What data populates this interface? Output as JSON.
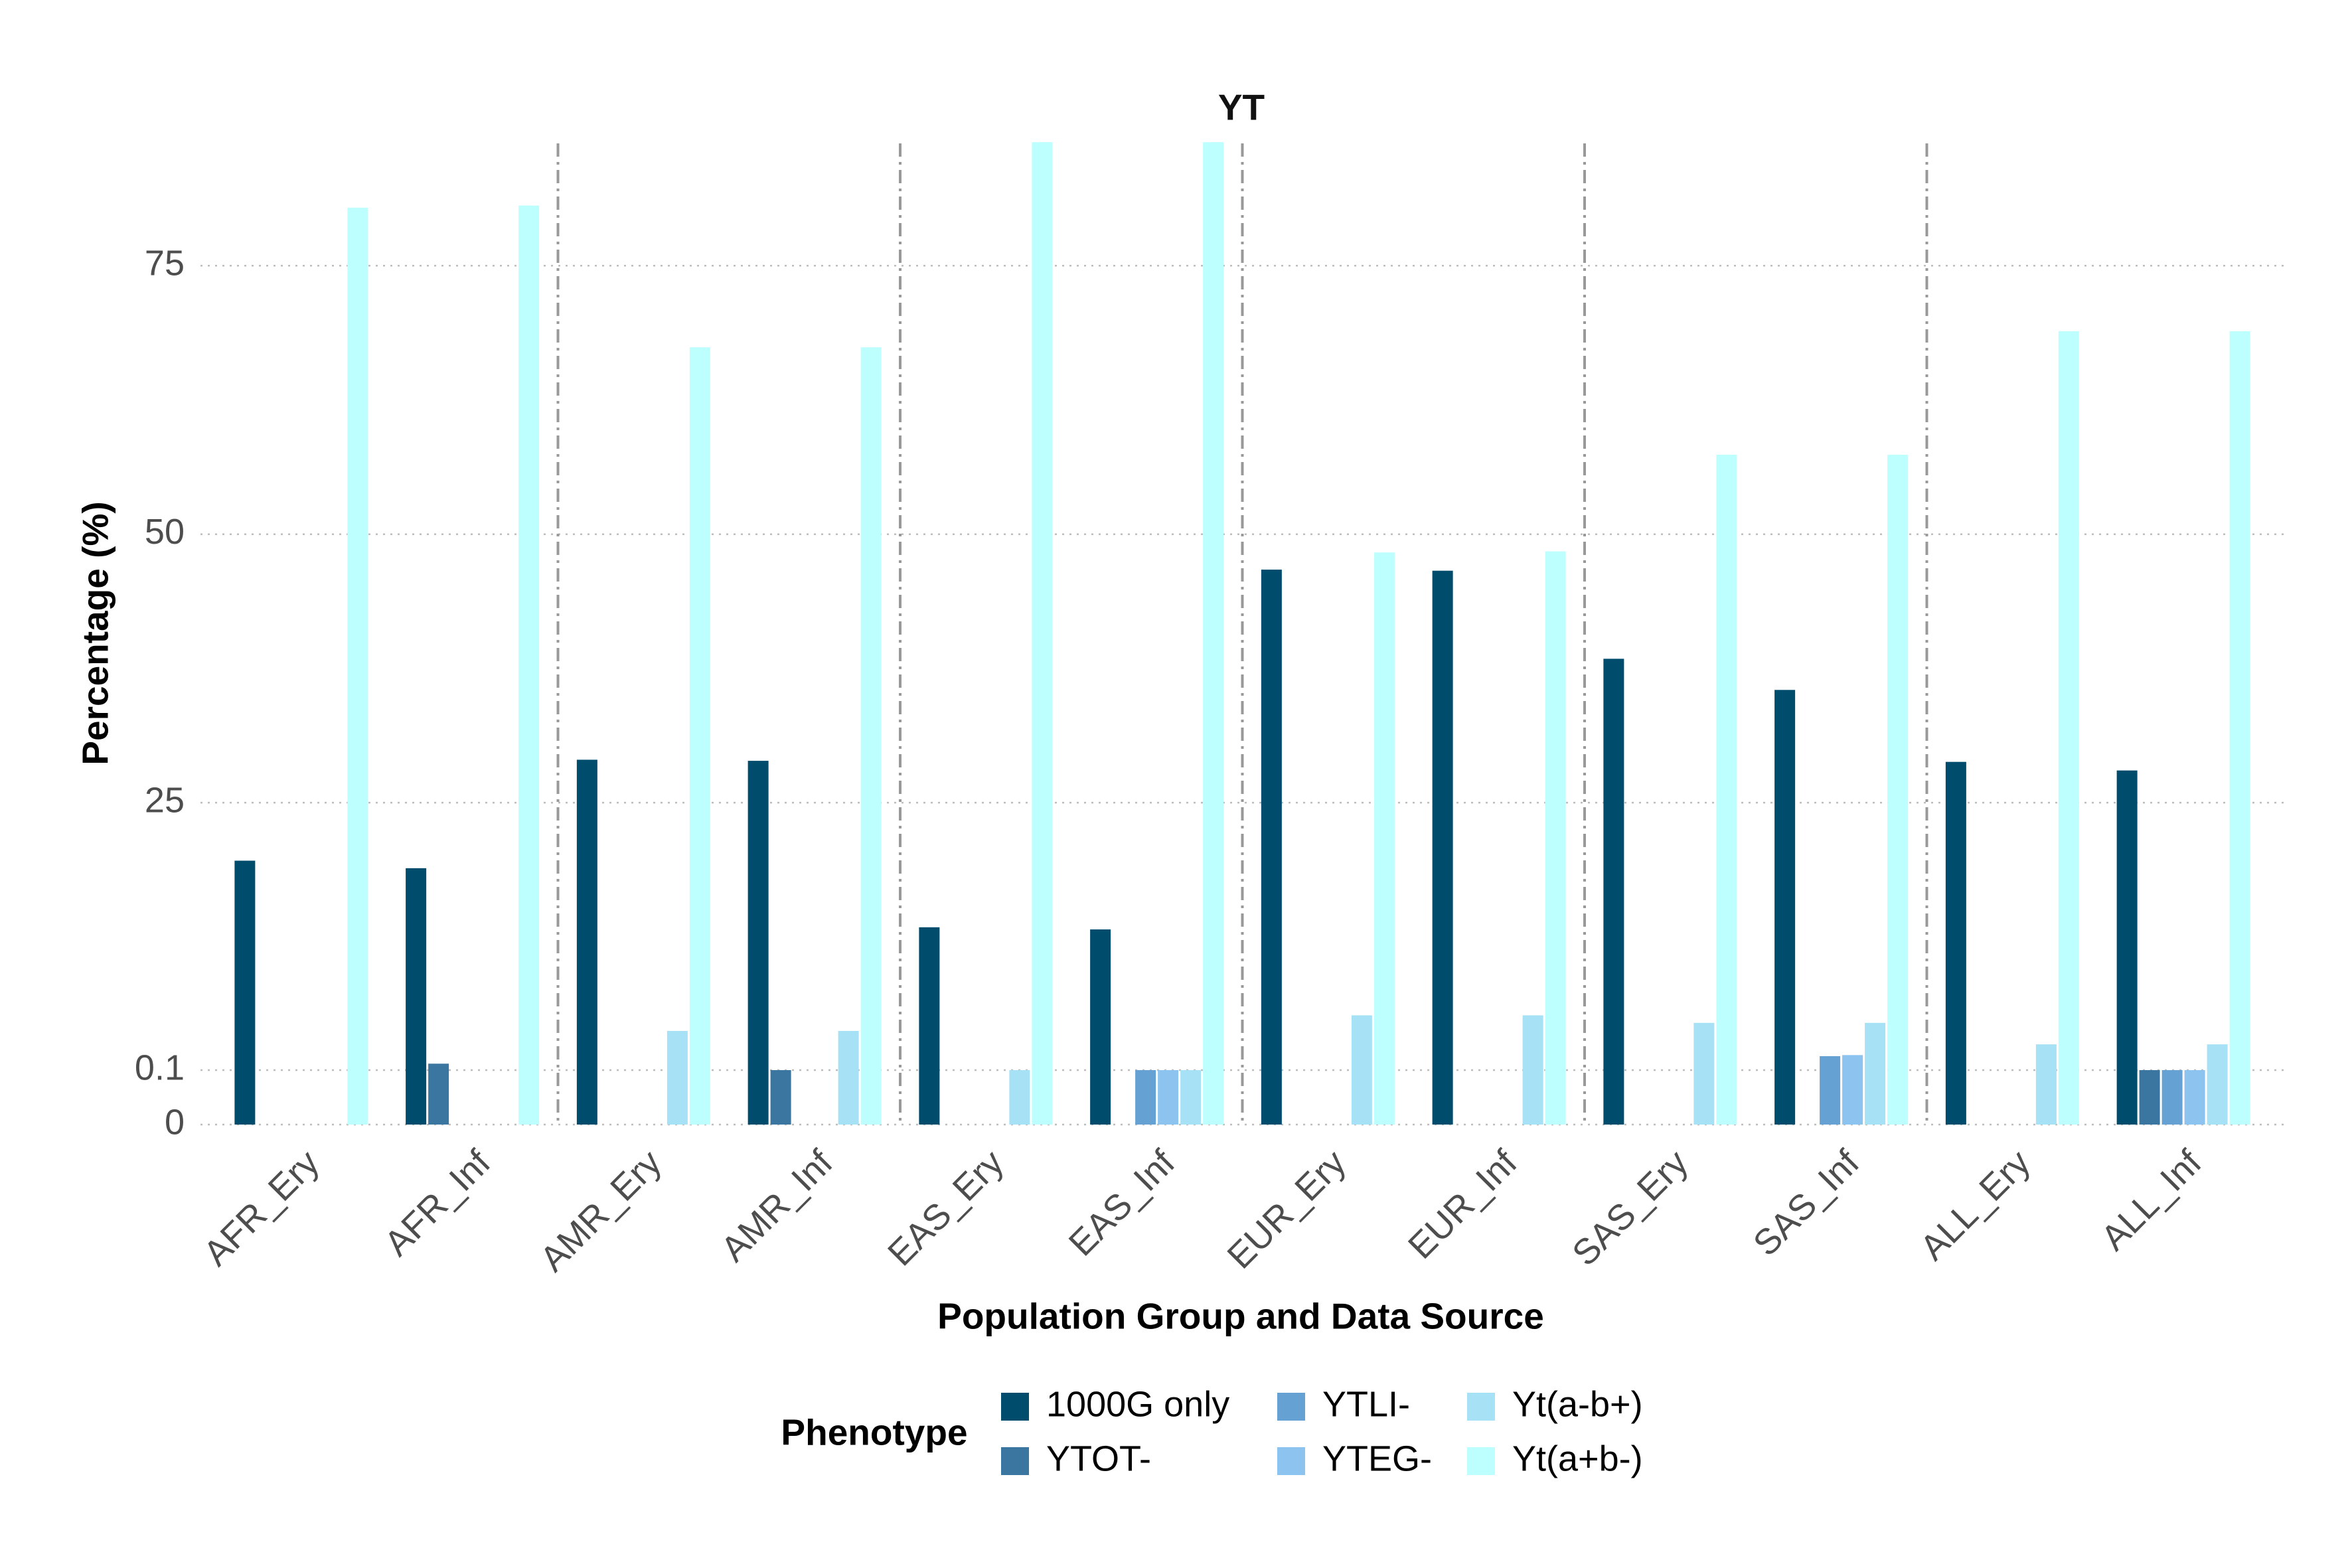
{
  "chart_data": {
    "type": "bar",
    "title": "YT",
    "x_label": "Population Group and Data Source",
    "y_label": "Percentage (%)",
    "legend_title": "Phenotype",
    "categories": [
      "AFR_Ery",
      "AFR_Inf",
      "AMR_Ery",
      "AMR_Inf",
      "EAS_Ery",
      "EAS_Inf",
      "EUR_Ery",
      "EUR_Inf",
      "SAS_Ery",
      "SAS_Inf",
      "ALL_Ery",
      "ALL_Inf"
    ],
    "series": [
      {
        "name": "1000G only",
        "color": "#004c6d",
        "values": [
          19.6,
          18.9,
          29.0,
          28.9,
          13.4,
          13.2,
          46.7,
          46.6,
          38.4,
          35.5,
          28.8,
          28.0
        ]
      },
      {
        "name": "YTOT-",
        "color": "#3a76a0",
        "values": [
          0,
          0.7,
          0,
          0.1,
          0,
          0,
          0,
          0,
          0,
          0,
          0,
          0.1
        ]
      },
      {
        "name": "YTLI-",
        "color": "#66a1d4",
        "values": [
          0,
          0,
          0,
          0,
          0,
          0.1,
          0,
          0,
          0,
          1.4,
          0,
          0.1
        ]
      },
      {
        "name": "YTEG-",
        "color": "#8cc3ef",
        "values": [
          0,
          0,
          0,
          0,
          0,
          0.1,
          0,
          0,
          0,
          1.5,
          0,
          0.1
        ]
      },
      {
        "name": "Yt(a-b+)",
        "color": "#a6e1f5",
        "values": [
          0,
          0,
          3.75,
          3.75,
          0.1,
          0.1,
          5.2,
          5.2,
          4.5,
          4.5,
          2.5,
          2.5
        ]
      },
      {
        "name": "Yt(a+b-)",
        "color": "#bdffff",
        "values": [
          80.4,
          80.6,
          67.4,
          67.4,
          86.5,
          86.5,
          48.3,
          48.4,
          57.4,
          57.4,
          68.9,
          68.9
        ]
      }
    ],
    "ylim": [
      0,
      87.5
    ],
    "yticks": [
      0,
      0.1,
      25,
      50,
      75
    ],
    "grid": true
  }
}
